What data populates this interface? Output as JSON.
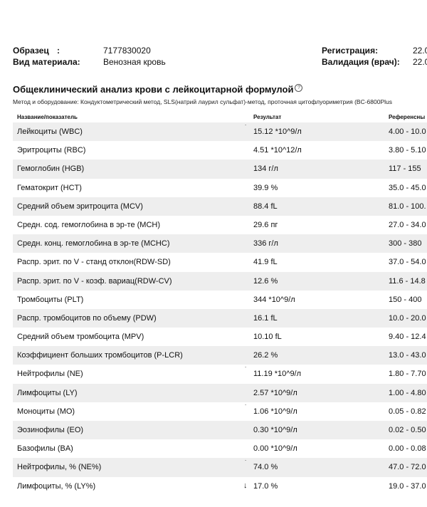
{
  "header": {
    "sample_label": "Образец",
    "sample_colon": ":",
    "sample_value": "7177830020",
    "material_label": "Вид материала:",
    "material_value": "Венозная кровь",
    "registration_label": "Регистрация:",
    "registration_value": "22.0",
    "validation_label": "Валидация (врач):",
    "validation_value": "22.0"
  },
  "section": {
    "title": "Общеклинический анализ крови с лейкоцитарной формулой",
    "info_icon": "?",
    "method": "Метод и оборудование: Кондуктометрический метод, SLS(натрий лаурил сульфат)-метод, проточная цитофлуориметрия (BC-6800Plus"
  },
  "table": {
    "col_name": "Название/показатель",
    "col_result": "Результат",
    "col_ref": "Референсны",
    "rows": [
      {
        "name": "Лейкоциты (WBC)",
        "result": "15.12 *10^9/л",
        "ref": "4.00 - 10.0",
        "flag": "˙"
      },
      {
        "name": "Эритроциты (RBC)",
        "result": "4.51 *10^12/л",
        "ref": "3.80 - 5.10",
        "flag": ""
      },
      {
        "name": "Гемоглобин (HGB)",
        "result": "134 г/л",
        "ref": "117 - 155",
        "flag": ""
      },
      {
        "name": "Гематокрит (HCT)",
        "result": "39.9 %",
        "ref": "35.0 - 45.0",
        "flag": ""
      },
      {
        "name": "Средний объем эритроцита (MCV)",
        "result": "88.4 fL",
        "ref": "81.0 - 100.",
        "flag": ""
      },
      {
        "name": "Средн. сод. гемоглобина в эр-те (MCH)",
        "result": "29.6 пг",
        "ref": "27.0 - 34.0",
        "flag": ""
      },
      {
        "name": "Средн. конц. гемоглобина в эр-те (MCHC)",
        "result": "336 г/л",
        "ref": "300 - 380",
        "flag": ""
      },
      {
        "name": "Распр. эрит. по V - станд отклон(RDW-SD)",
        "result": "41.9 fL",
        "ref": "37.0 - 54.0",
        "flag": ""
      },
      {
        "name": "Распр. эрит. по V - коэф. вариац(RDW-CV)",
        "result": "12.6 %",
        "ref": "11.6 - 14.8",
        "flag": ""
      },
      {
        "name": "Тромбоциты (PLT)",
        "result": "344 *10^9/л",
        "ref": "150 - 400",
        "flag": ""
      },
      {
        "name": "Распр. тромбоцитов по объему (PDW)",
        "result": "16.1 fL",
        "ref": "10.0 - 20.0",
        "flag": ""
      },
      {
        "name": "Средний объем тромбоцита (MPV)",
        "result": "10.10 fL",
        "ref": "9.40 - 12.4",
        "flag": ""
      },
      {
        "name": "Коэффициент больших тромбоцитов (P-LCR)",
        "result": "26.2 %",
        "ref": "13.0 - 43.0",
        "flag": ""
      },
      {
        "name": "Нейтрофилы (NE)",
        "result": "11.19 *10^9/л",
        "ref": "1.80 - 7.70",
        "flag": "˙"
      },
      {
        "name": "Лимфоциты (LY)",
        "result": "2.57 *10^9/л",
        "ref": "1.00 - 4.80",
        "flag": ""
      },
      {
        "name": "Моноциты (MO)",
        "result": "1.06 *10^9/л",
        "ref": "0.05 - 0.82",
        "flag": "˙"
      },
      {
        "name": "Эозинофилы (EO)",
        "result": "0.30 *10^9/л",
        "ref": "0.02 - 0.50",
        "flag": ""
      },
      {
        "name": "Базофилы (BA)",
        "result": "0.00 *10^9/л",
        "ref": "0.00 - 0.08",
        "flag": ""
      },
      {
        "name": "Нейтрофилы, % (NE%)",
        "result": "74.0 %",
        "ref": "47.0 - 72.0",
        "flag": "˙"
      },
      {
        "name": "Лимфоциты, % (LY%)",
        "result": "17.0 %",
        "ref": "19.0 - 37.0",
        "flag": "↓"
      }
    ]
  }
}
